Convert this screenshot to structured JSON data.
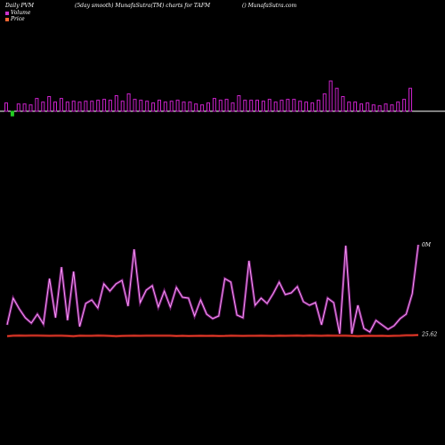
{
  "header": {
    "left": "Daily PVM",
    "center_left": "(5day smooth) MunafaSutra(TM) charts for TAFM",
    "right": "() MunafaSutra.com"
  },
  "legend": {
    "volume_label": "Volume",
    "price_label": "Price",
    "volume_color": "#cc33cc",
    "price_color": "#ff6633"
  },
  "chart_data": [
    {
      "type": "bar",
      "name": "volume-bars",
      "colors": {
        "up": "#cc22cc",
        "down": "#22cc22",
        "baseline": "#ffffff"
      },
      "values": [
        9,
        -5,
        8,
        8,
        7,
        14,
        10,
        16,
        10,
        14,
        10,
        11,
        10,
        11,
        11,
        12,
        13,
        12,
        17,
        11,
        19,
        13,
        12,
        11,
        9,
        12,
        10,
        11,
        12,
        10,
        10,
        8,
        7,
        9,
        14,
        12,
        13,
        9,
        17,
        12,
        12,
        12,
        11,
        13,
        10,
        12,
        13,
        13,
        11,
        10,
        9,
        12,
        19,
        33,
        25,
        16,
        10,
        10,
        8,
        9,
        7,
        6,
        8,
        7,
        10,
        13,
        25
      ],
      "direction": [
        "up",
        "down",
        "up",
        "up",
        "up",
        "up",
        "up",
        "up",
        "up",
        "up",
        "up",
        "up",
        "up",
        "up",
        "up",
        "up",
        "up",
        "up",
        "up",
        "up",
        "up",
        "up",
        "up",
        "up",
        "up",
        "up",
        "up",
        "up",
        "up",
        "up",
        "up",
        "up",
        "up",
        "up",
        "up",
        "up",
        "up",
        "up",
        "up",
        "up",
        "up",
        "up",
        "up",
        "up",
        "up",
        "up",
        "up",
        "up",
        "up",
        "up",
        "up",
        "up",
        "up",
        "up",
        "up",
        "up",
        "up",
        "up",
        "up",
        "up",
        "up",
        "up",
        "up",
        "up",
        "up",
        "up",
        "up"
      ]
    },
    {
      "type": "line",
      "series": [
        {
          "name": "Volume",
          "color": "#cc33cc",
          "end_label": "0M",
          "values": [
            10,
            40,
            28,
            18,
            12,
            22,
            11,
            62,
            18,
            75,
            15,
            70,
            8,
            34,
            38,
            29,
            56,
            48,
            56,
            60,
            31,
            95,
            35,
            49,
            54,
            30,
            48,
            30,
            52,
            41,
            40,
            20,
            38,
            22,
            17,
            20,
            62,
            58,
            21,
            18,
            82,
            32,
            40,
            34,
            45,
            58,
            44,
            46,
            53,
            36,
            32,
            35,
            10,
            40,
            35,
            0,
            99,
            0,
            32,
            6,
            2,
            15,
            10,
            5,
            9,
            17,
            22,
            45,
            100
          ]
        },
        {
          "name": "Price",
          "color": "#ff3322",
          "end_label": "25.62",
          "values": [
            30,
            35,
            36,
            35,
            36,
            36,
            35,
            34,
            35,
            35,
            33,
            30,
            35,
            34,
            34,
            36,
            35,
            33,
            31,
            33,
            34,
            35,
            34,
            35,
            35,
            35,
            35,
            35,
            32,
            34,
            32,
            33,
            34,
            33,
            34,
            32,
            33,
            35,
            34,
            33,
            34,
            34,
            35,
            34,
            33,
            35,
            34,
            35,
            36,
            34,
            36,
            35,
            34,
            36,
            35,
            35,
            35,
            33,
            31,
            33,
            34,
            33,
            34,
            32,
            34,
            35,
            38,
            38,
            40
          ]
        }
      ]
    }
  ]
}
